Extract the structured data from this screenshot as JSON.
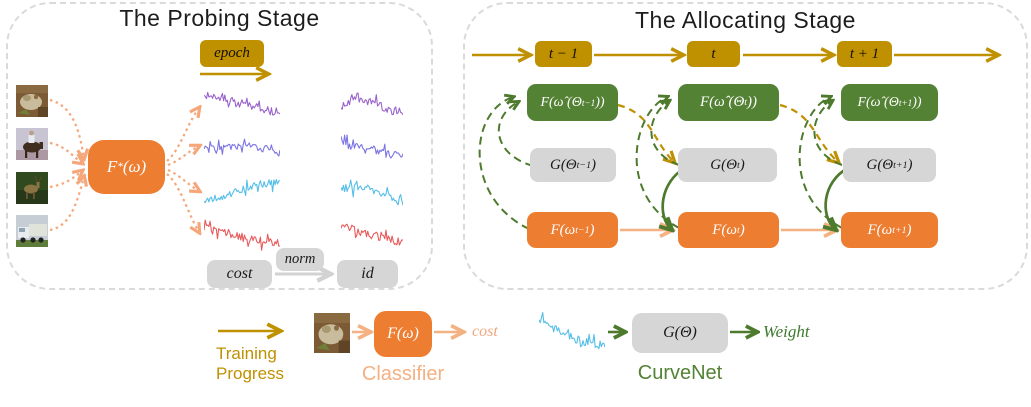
{
  "colors": {
    "ink": "#1f1f1f",
    "orange": "#ED7D31",
    "orange_light": "#F4B183",
    "orange_dot": "#F5A77B",
    "gold": "#BF9000",
    "green": "#548235",
    "green_stroke": "#4E7A2D",
    "gray_box": "#D6D6D6",
    "gray_arrow": "#D2D2D2",
    "panel_border": "#DADADA",
    "purple": "#9A63CC",
    "violet": "#7B74E3",
    "cyan": "#55BEE8",
    "red": "#E85A5A"
  },
  "probing": {
    "title": "The Probing Stage",
    "epoch_label": "epoch",
    "model_formula": [
      {
        "t": "F"
      },
      {
        "t": "*",
        "s": "sup"
      },
      {
        "t": " (ω)"
      }
    ],
    "cost_label": "cost",
    "norm_label": "norm",
    "id_label": "id",
    "images": [
      "frog",
      "horse",
      "deer",
      "truck"
    ]
  },
  "allocating": {
    "title": "The Allocating Stage",
    "timeline": [
      "t − 1",
      "t",
      "t + 1"
    ],
    "columns": [
      {
        "meta": [
          {
            "t": "F(ω̂ (Θ"
          },
          {
            "t": "t−1",
            "s": "sub"
          },
          {
            "t": "))"
          }
        ],
        "curvenet": [
          {
            "t": "G(Θ"
          },
          {
            "t": "t−1",
            "s": "sub"
          },
          {
            "t": ")"
          }
        ],
        "classifier": [
          {
            "t": "F(ω"
          },
          {
            "t": "t−1",
            "s": "sub"
          },
          {
            "t": ")"
          }
        ]
      },
      {
        "meta": [
          {
            "t": "F(ω̂ (Θ"
          },
          {
            "t": "t",
            "s": "sub"
          },
          {
            "t": "))"
          }
        ],
        "curvenet": [
          {
            "t": "G(Θ"
          },
          {
            "t": "t",
            "s": "sub"
          },
          {
            "t": ")"
          }
        ],
        "classifier": [
          {
            "t": "F(ω"
          },
          {
            "t": "t",
            "s": "sub"
          },
          {
            "t": ")"
          }
        ]
      },
      {
        "meta": [
          {
            "t": "F(ω̂ (Θ"
          },
          {
            "t": "t+1",
            "s": "sub"
          },
          {
            "t": "))"
          }
        ],
        "curvenet": [
          {
            "t": "G(Θ"
          },
          {
            "t": "t+1",
            "s": "sub"
          },
          {
            "t": ")"
          }
        ],
        "classifier": [
          {
            "t": "F(ω"
          },
          {
            "t": "t+1",
            "s": "sub"
          },
          {
            "t": ")"
          }
        ]
      }
    ]
  },
  "legend": {
    "training_label": "Training Progress",
    "classifier_formula": [
      {
        "t": "F(ω)"
      }
    ],
    "classifier_name": "Classifier",
    "cost_label": "cost",
    "curvenet_formula": [
      {
        "t": "G(Θ)"
      }
    ],
    "curvenet_name": "CurveNet",
    "weight_label": "Weight"
  },
  "curves": [
    {
      "color": "#9A63CC",
      "seed": 11,
      "amp": 0.1,
      "base": [
        0.22,
        0.3,
        0.42,
        0.55,
        0.62
      ]
    },
    {
      "color": "#7B74E3",
      "seed": 22,
      "amp": 0.09,
      "base": [
        0.5,
        0.52,
        0.44,
        0.5,
        0.58
      ]
    },
    {
      "color": "#55BEE8",
      "seed": 33,
      "amp": 0.09,
      "base": [
        0.78,
        0.68,
        0.52,
        0.38,
        0.33
      ]
    },
    {
      "color": "#E85A5A",
      "seed": 44,
      "amp": 0.1,
      "base": [
        0.3,
        0.5,
        0.62,
        0.7,
        0.76
      ]
    },
    {
      "color": "#9A63CC",
      "seed": 55,
      "amp": 0.11,
      "base": [
        0.5,
        0.3,
        0.35,
        0.55,
        0.6
      ]
    },
    {
      "color": "#7B74E3",
      "seed": 66,
      "amp": 0.1,
      "base": [
        0.35,
        0.45,
        0.5,
        0.62,
        0.72
      ]
    },
    {
      "color": "#55BEE8",
      "seed": 77,
      "amp": 0.1,
      "base": [
        0.45,
        0.4,
        0.48,
        0.62,
        0.78
      ]
    },
    {
      "color": "#E85A5A",
      "seed": 88,
      "amp": 0.1,
      "base": [
        0.32,
        0.45,
        0.55,
        0.65,
        0.72
      ]
    },
    {
      "color": "#55BEE8",
      "seed": 99,
      "amp": 0.1,
      "base": [
        0.28,
        0.42,
        0.58,
        0.72,
        0.82
      ]
    }
  ]
}
